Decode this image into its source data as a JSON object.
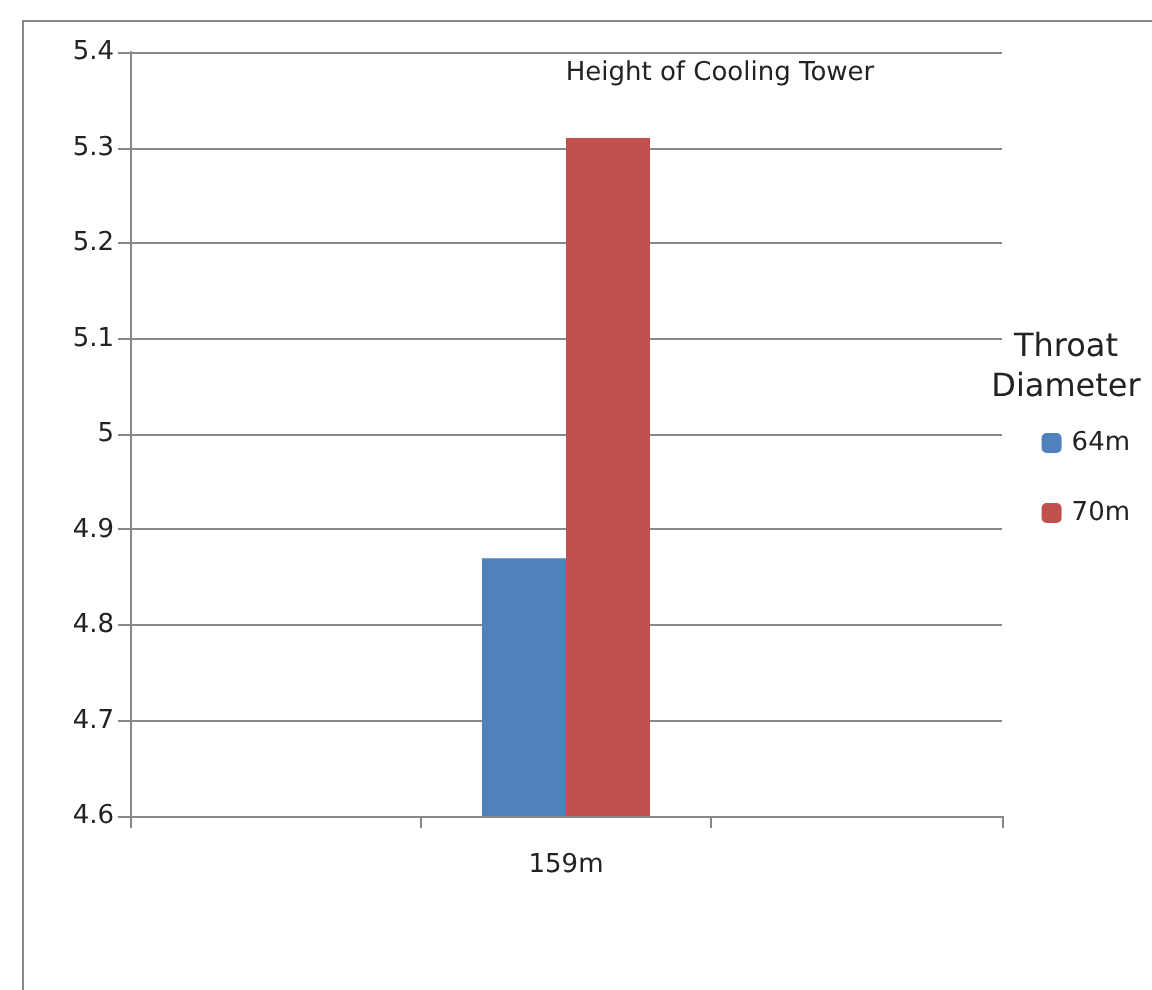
{
  "chart_data": {
    "type": "bar",
    "title": "Height of Cooling Tower",
    "legend_title": "Throat Diameter",
    "categories": [
      null,
      "159m",
      null
    ],
    "series": [
      {
        "name": "64m",
        "color": "#4f81bd",
        "values": [
          null,
          4.87,
          null
        ]
      },
      {
        "name": "70m",
        "color": "#c0504d",
        "values": [
          null,
          5.31,
          null
        ]
      }
    ],
    "ylim": [
      4.6,
      5.4
    ],
    "yticks": [
      4.6,
      4.7,
      4.8,
      4.9,
      5,
      5.1,
      5.2,
      5.3,
      5.4
    ],
    "grid": "y",
    "legend": "right"
  }
}
